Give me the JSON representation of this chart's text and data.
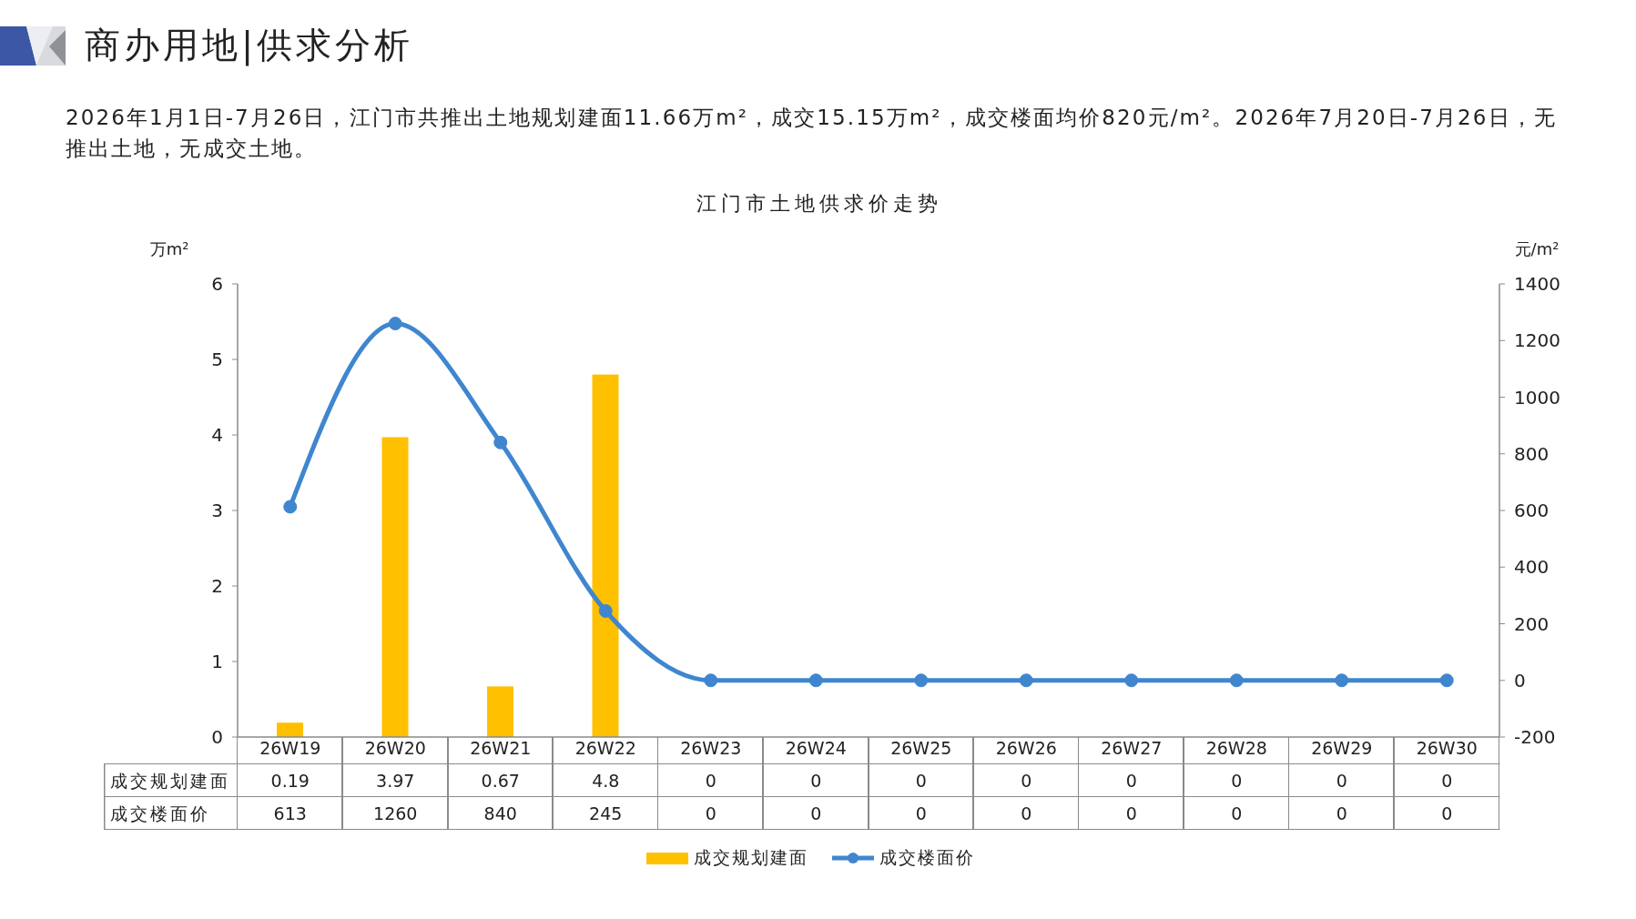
{
  "chart_data": {
    "type": "bar",
    "title": "江门市土地供求价走势",
    "annotations": [
      "商办用地|供求分析",
      "2026年1月1日-7月26日，江门市共推出土地规划建面11.66万m²，成交15.15万m²，成交楼面均价820元/m²。2026年7月20日-7月26日，无推出土地，无成交土地。"
    ],
    "ylabel": "万m²",
    "y2label": "元/m²",
    "categories": [
      "26W19",
      "26W20",
      "26W21",
      "26W22",
      "26W23",
      "26W24",
      "26W25",
      "26W26",
      "26W27",
      "26W28",
      "26W29",
      "26W30"
    ],
    "series": [
      {
        "name": "成交规划建面",
        "color": "#ffc000",
        "values": [
          0.19,
          3.97,
          0.67,
          4.8,
          0,
          0,
          0,
          0,
          0,
          0,
          0,
          0
        ]
      },
      {
        "name": "成交楼面价",
        "type": "line",
        "axis": "y2",
        "color": "#3f86cf",
        "values": [
          613,
          1260,
          840,
          245,
          0,
          0,
          0,
          0,
          0,
          0,
          0,
          0
        ]
      }
    ],
    "ylim": [
      0,
      6
    ],
    "yticks": [
      0,
      1,
      2,
      3,
      4,
      5,
      6
    ],
    "y2lim": [
      -200,
      1400
    ],
    "y2ticks": [
      -200,
      0,
      200,
      400,
      600,
      800,
      1000,
      1200,
      1400
    ],
    "legend": "bottom",
    "marker": "circle",
    "data_labels": true
  }
}
